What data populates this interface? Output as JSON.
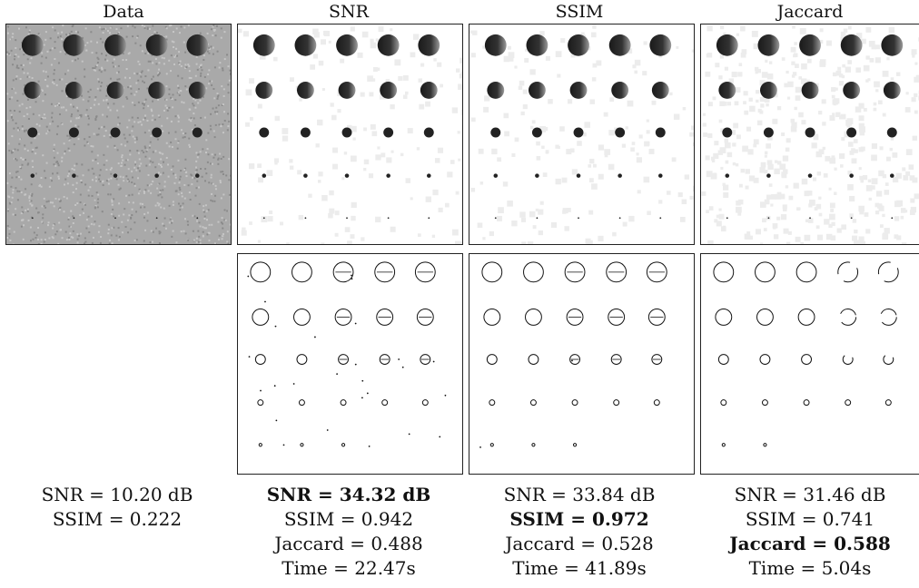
{
  "columns": [
    {
      "title": "Data",
      "image_kind": "noisy",
      "metrics": [
        {
          "text": "SNR = 10.20 dB",
          "bold": false
        },
        {
          "text": "SSIM = 0.222",
          "bold": false
        }
      ]
    },
    {
      "title": "SNR",
      "image_kind": "reconstruction",
      "metrics": [
        {
          "text": "SNR = 34.32 dB",
          "bold": true
        },
        {
          "text": "SSIM = 0.942",
          "bold": false
        },
        {
          "text": "Jaccard = 0.488",
          "bold": false
        },
        {
          "text": "Time = 22.47s",
          "bold": false
        }
      ]
    },
    {
      "title": "SSIM",
      "image_kind": "reconstruction",
      "metrics": [
        {
          "text": "SNR = 33.84 dB",
          "bold": false
        },
        {
          "text": "SSIM = 0.972",
          "bold": true
        },
        {
          "text": "Jaccard = 0.528",
          "bold": false
        },
        {
          "text": "Time = 41.89s",
          "bold": false
        }
      ]
    },
    {
      "title": "Jaccard",
      "image_kind": "reconstruction",
      "metrics": [
        {
          "text": "SNR = 31.46 dB",
          "bold": false
        },
        {
          "text": "SSIM = 0.741",
          "bold": false
        },
        {
          "text": "Jaccard = 0.588",
          "bold": true
        },
        {
          "text": "Time = 5.04s",
          "bold": false
        }
      ]
    }
  ],
  "colors": {
    "noisy_background": "#a9a9a9",
    "disk_dark": "#1a1a1a",
    "disk_light": "#9a9a9a",
    "edge_stroke": "#111111"
  }
}
